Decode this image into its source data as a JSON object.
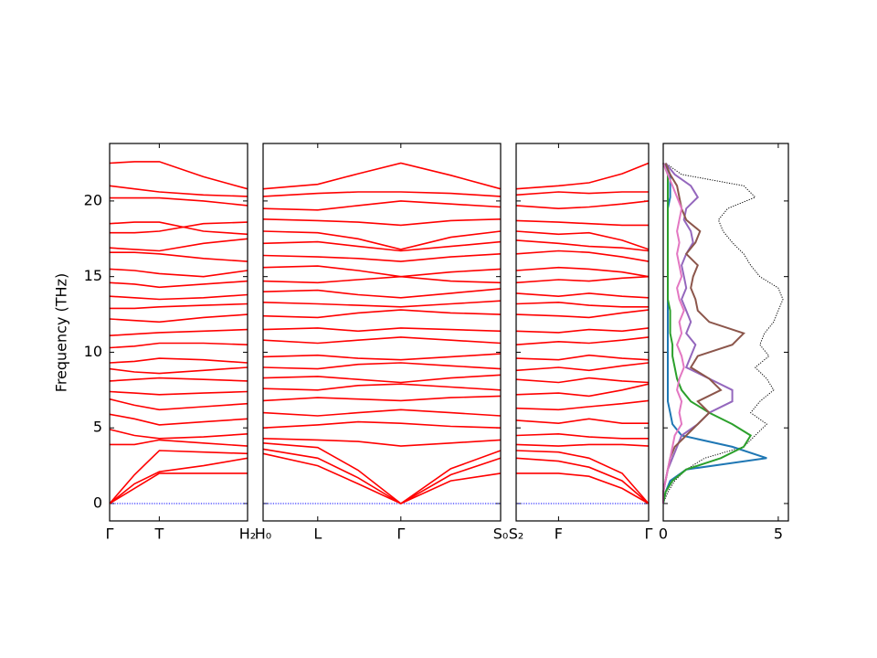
{
  "chart_data": [
    {
      "type": "band",
      "ylabel": "Frequency (THz)",
      "color": "#ff0000",
      "x": [
        0,
        0.18,
        0.36,
        0.68,
        1
      ],
      "xlim": [
        0,
        1
      ],
      "xticks": [
        {
          "value": 0,
          "label": "Γ"
        },
        {
          "value": 0.36,
          "label": "T"
        },
        {
          "value": 1,
          "label": "H₂"
        }
      ],
      "ylim": [
        -1.15,
        23.8
      ],
      "yticks": [
        0,
        5,
        10,
        15,
        20
      ],
      "series": [
        {
          "color": "#0000ff",
          "style": "dotted",
          "values": [
            0,
            0,
            0,
            0,
            0
          ]
        },
        {
          "values": [
            0,
            1.0,
            2.0,
            2.0,
            2.0
          ]
        },
        {
          "values": [
            0,
            1.3,
            2.1,
            2.5,
            3.0
          ]
        },
        {
          "values": [
            0,
            1.9,
            3.5,
            3.4,
            3.3
          ]
        },
        {
          "values": [
            3.9,
            3.9,
            4.2,
            4.0,
            3.8
          ]
        },
        {
          "values": [
            4.9,
            4.5,
            4.3,
            4.4,
            4.6
          ]
        },
        {
          "values": [
            5.9,
            5.6,
            5.2,
            5.4,
            5.6
          ]
        },
        {
          "values": [
            6.9,
            6.5,
            6.2,
            6.4,
            6.6
          ]
        },
        {
          "values": [
            7.4,
            7.3,
            7.2,
            7.3,
            7.4
          ]
        },
        {
          "values": [
            8.1,
            8.2,
            8.3,
            8.2,
            8.1
          ]
        },
        {
          "values": [
            8.9,
            8.7,
            8.6,
            8.8,
            9.0
          ]
        },
        {
          "values": [
            9.3,
            9.4,
            9.6,
            9.5,
            9.3
          ]
        },
        {
          "values": [
            10.3,
            10.4,
            10.6,
            10.6,
            10.5
          ]
        },
        {
          "values": [
            11.1,
            11.2,
            11.3,
            11.4,
            11.5
          ]
        },
        {
          "values": [
            12.2,
            12.1,
            12.0,
            12.3,
            12.5
          ]
        },
        {
          "values": [
            12.9,
            12.9,
            13.0,
            13.1,
            13.2
          ]
        },
        {
          "values": [
            13.7,
            13.6,
            13.5,
            13.6,
            13.8
          ]
        },
        {
          "values": [
            14.6,
            14.5,
            14.3,
            14.5,
            14.7
          ]
        },
        {
          "values": [
            15.5,
            15.4,
            15.2,
            15.0,
            15.4
          ]
        },
        {
          "values": [
            16.6,
            16.6,
            16.5,
            16.2,
            16.0
          ]
        },
        {
          "values": [
            16.9,
            16.8,
            16.7,
            17.2,
            17.5
          ]
        },
        {
          "values": [
            17.9,
            17.9,
            18.0,
            18.5,
            18.6
          ]
        },
        {
          "values": [
            18.5,
            18.6,
            18.6,
            18.0,
            17.8
          ]
        },
        {
          "values": [
            20.2,
            20.2,
            20.2,
            20.0,
            19.7
          ]
        },
        {
          "values": [
            21.0,
            20.8,
            20.6,
            20.4,
            20.3
          ]
        },
        {
          "values": [
            22.5,
            22.6,
            22.6,
            21.6,
            20.8
          ]
        }
      ]
    },
    {
      "type": "band",
      "color": "#ff0000",
      "x": [
        0,
        0.23,
        0.4,
        0.58,
        0.79,
        1
      ],
      "xlim": [
        0,
        1
      ],
      "xticks": [
        {
          "value": 0,
          "label": "H₀"
        },
        {
          "value": 0.23,
          "label": "L"
        },
        {
          "value": 0.58,
          "label": "Γ"
        },
        {
          "value": 1,
          "label": "S₀"
        }
      ],
      "ylim": [
        -1.15,
        23.8
      ],
      "series": [
        {
          "color": "#0000ff",
          "style": "dotted",
          "values": [
            0,
            0,
            0,
            0,
            0,
            0
          ]
        },
        {
          "values": [
            3.3,
            2.5,
            1.3,
            0,
            1.5,
            2.0
          ]
        },
        {
          "values": [
            3.6,
            3.0,
            1.7,
            0,
            1.9,
            3.0
          ]
        },
        {
          "values": [
            4.0,
            3.7,
            2.2,
            0,
            2.3,
            3.5
          ]
        },
        {
          "values": [
            4.3,
            4.2,
            4.1,
            3.8,
            4.0,
            4.2
          ]
        },
        {
          "values": [
            5.0,
            5.2,
            5.4,
            5.3,
            5.1,
            5.0
          ]
        },
        {
          "values": [
            6.0,
            5.8,
            6.0,
            6.2,
            6.0,
            5.8
          ]
        },
        {
          "values": [
            6.8,
            7.0,
            6.9,
            6.8,
            7.0,
            7.1
          ]
        },
        {
          "values": [
            7.6,
            7.5,
            7.8,
            7.9,
            7.7,
            7.5
          ]
        },
        {
          "values": [
            8.3,
            8.4,
            8.2,
            8.0,
            8.3,
            8.5
          ]
        },
        {
          "values": [
            9.0,
            8.9,
            9.2,
            9.3,
            9.1,
            8.9
          ]
        },
        {
          "values": [
            9.7,
            9.8,
            9.6,
            9.5,
            9.7,
            9.9
          ]
        },
        {
          "values": [
            10.8,
            10.6,
            10.8,
            11.0,
            10.8,
            10.6
          ]
        },
        {
          "values": [
            11.5,
            11.6,
            11.4,
            11.6,
            11.5,
            11.4
          ]
        },
        {
          "values": [
            12.4,
            12.3,
            12.6,
            12.8,
            12.6,
            12.5
          ]
        },
        {
          "values": [
            13.3,
            13.2,
            13.1,
            13.0,
            13.2,
            13.4
          ]
        },
        {
          "values": [
            14.0,
            14.1,
            13.8,
            13.6,
            13.9,
            14.2
          ]
        },
        {
          "values": [
            14.7,
            14.6,
            14.8,
            15.0,
            14.7,
            14.6
          ]
        },
        {
          "values": [
            15.6,
            15.7,
            15.4,
            15.0,
            15.3,
            15.5
          ]
        },
        {
          "values": [
            16.4,
            16.3,
            16.2,
            16.0,
            16.3,
            16.5
          ]
        },
        {
          "values": [
            17.2,
            17.3,
            17.0,
            16.7,
            17.0,
            17.3
          ]
        },
        {
          "values": [
            18.0,
            17.9,
            17.5,
            16.8,
            17.6,
            18.0
          ]
        },
        {
          "values": [
            18.8,
            18.7,
            18.6,
            18.4,
            18.7,
            18.8
          ]
        },
        {
          "values": [
            19.5,
            19.4,
            19.7,
            20.0,
            19.8,
            19.6
          ]
        },
        {
          "values": [
            20.3,
            20.5,
            20.6,
            20.6,
            20.5,
            20.3
          ]
        },
        {
          "values": [
            20.8,
            21.1,
            21.8,
            22.5,
            21.7,
            20.8
          ]
        }
      ]
    },
    {
      "type": "band",
      "color": "#ff0000",
      "x": [
        0,
        0.32,
        0.55,
        0.8,
        1
      ],
      "xlim": [
        0,
        1
      ],
      "xticks": [
        {
          "value": 0,
          "label": "S₂"
        },
        {
          "value": 0.32,
          "label": "F"
        },
        {
          "value": 1,
          "label": "Γ"
        }
      ],
      "ylim": [
        -1.15,
        23.8
      ],
      "series": [
        {
          "color": "#0000ff",
          "style": "dotted",
          "values": [
            0,
            0,
            0,
            0,
            0
          ]
        },
        {
          "values": [
            2.0,
            2.0,
            1.8,
            1.0,
            0
          ]
        },
        {
          "values": [
            3.0,
            2.8,
            2.4,
            1.5,
            0
          ]
        },
        {
          "values": [
            3.5,
            3.4,
            3.0,
            2.0,
            0
          ]
        },
        {
          "values": [
            3.9,
            3.8,
            3.9,
            3.9,
            3.8
          ]
        },
        {
          "values": [
            4.5,
            4.6,
            4.4,
            4.3,
            4.3
          ]
        },
        {
          "values": [
            5.5,
            5.3,
            5.6,
            5.3,
            5.3
          ]
        },
        {
          "values": [
            6.3,
            6.2,
            6.4,
            6.6,
            6.8
          ]
        },
        {
          "values": [
            7.2,
            7.3,
            7.1,
            7.5,
            7.9
          ]
        },
        {
          "values": [
            8.2,
            8.0,
            8.3,
            8.1,
            8.0
          ]
        },
        {
          "values": [
            8.8,
            9.0,
            8.8,
            9.1,
            9.3
          ]
        },
        {
          "values": [
            9.6,
            9.5,
            9.8,
            9.6,
            9.5
          ]
        },
        {
          "values": [
            10.5,
            10.7,
            10.6,
            10.8,
            11.0
          ]
        },
        {
          "values": [
            11.4,
            11.3,
            11.5,
            11.4,
            11.6
          ]
        },
        {
          "values": [
            12.5,
            12.4,
            12.3,
            12.6,
            12.8
          ]
        },
        {
          "values": [
            13.2,
            13.3,
            13.1,
            13.0,
            13.0
          ]
        },
        {
          "values": [
            13.9,
            13.7,
            13.9,
            13.7,
            13.6
          ]
        },
        {
          "values": [
            14.6,
            14.8,
            14.7,
            14.9,
            15.0
          ]
        },
        {
          "values": [
            15.4,
            15.6,
            15.5,
            15.3,
            15.0
          ]
        },
        {
          "values": [
            16.5,
            16.7,
            16.6,
            16.3,
            16.0
          ]
        },
        {
          "values": [
            17.4,
            17.2,
            17.0,
            16.9,
            16.7
          ]
        },
        {
          "values": [
            18.0,
            17.8,
            17.9,
            17.4,
            16.8
          ]
        },
        {
          "values": [
            18.7,
            18.6,
            18.5,
            18.4,
            18.4
          ]
        },
        {
          "values": [
            19.7,
            19.5,
            19.6,
            19.8,
            20.0
          ]
        },
        {
          "values": [
            20.4,
            20.6,
            20.5,
            20.6,
            20.6
          ]
        },
        {
          "values": [
            20.8,
            21.0,
            21.2,
            21.8,
            22.5
          ]
        }
      ]
    },
    {
      "type": "dos",
      "xlim": [
        0,
        5.44
      ],
      "xticks": [
        0,
        5
      ],
      "ylim": [
        -1.15,
        23.8
      ],
      "y": [
        0,
        0.75,
        1.5,
        2.25,
        3,
        3.75,
        4.5,
        5.25,
        6,
        6.75,
        7.5,
        8.25,
        9,
        9.75,
        10.5,
        11.25,
        12,
        12.75,
        13.5,
        14.25,
        15,
        15.75,
        16.5,
        17.25,
        18,
        18.75,
        19.5,
        20.25,
        21,
        21.75,
        22.5
      ],
      "series": [
        {
          "color": "#000000",
          "style": "dotted",
          "values": [
            0,
            0.2,
            0.5,
            1.0,
            1.8,
            3.5,
            4.0,
            4.5,
            3.8,
            4.2,
            4.8,
            4.5,
            4.0,
            4.6,
            4.2,
            4.4,
            4.8,
            5.0,
            5.2,
            5.0,
            4.2,
            3.8,
            3.5,
            3.0,
            2.6,
            2.4,
            2.8,
            4.0,
            3.5,
            0.8,
            0.1
          ]
        },
        {
          "color": "#1f77b4",
          "values": [
            0,
            0.1,
            0.3,
            1.0,
            4.5,
            3.0,
            0.8,
            0.4,
            0.3,
            0.2,
            0.2,
            0.2,
            0.2,
            0.2,
            0.2,
            0.2,
            0.2,
            0.2,
            0.2,
            0.2,
            0.2,
            0.2,
            0.2,
            0.2,
            0.2,
            0.2,
            0.2,
            0.3,
            0.3,
            0.3,
            0.0
          ]
        },
        {
          "color": "#2ca02c",
          "values": [
            0,
            0.1,
            0.4,
            1.0,
            2.5,
            3.5,
            3.8,
            3.0,
            2.0,
            1.2,
            0.8,
            0.6,
            0.5,
            0.4,
            0.4,
            0.3,
            0.3,
            0.3,
            0.2,
            0.2,
            0.2,
            0.2,
            0.2,
            0.2,
            0.2,
            0.2,
            0.2,
            0.2,
            0.2,
            0.2,
            0.0
          ]
        },
        {
          "color": "#9467bd",
          "values": [
            0,
            0,
            0.1,
            0.2,
            0.4,
            0.6,
            0.8,
            1.5,
            2.0,
            3.0,
            3.0,
            2.0,
            1.0,
            1.2,
            1.4,
            1.0,
            1.2,
            1.0,
            0.8,
            1.0,
            0.9,
            0.8,
            1.0,
            1.3,
            1.2,
            0.9,
            1.0,
            1.5,
            1.2,
            0.5,
            0.1
          ]
        },
        {
          "color": "#8c564b",
          "values": [
            0,
            0,
            0.1,
            0.2,
            0.3,
            0.5,
            1.0,
            1.5,
            2.0,
            1.5,
            2.5,
            2.0,
            1.2,
            1.5,
            3.0,
            3.5,
            2.0,
            1.5,
            1.4,
            1.2,
            1.3,
            1.5,
            1.0,
            1.4,
            1.6,
            1.0,
            0.8,
            0.7,
            0.6,
            0.3,
            0.1
          ]
        },
        {
          "color": "#e377c2",
          "values": [
            0,
            0,
            0.1,
            0.2,
            0.3,
            0.4,
            0.5,
            0.8,
            0.7,
            0.8,
            0.6,
            0.7,
            0.9,
            0.8,
            0.6,
            0.8,
            0.7,
            0.9,
            0.7,
            0.6,
            0.8,
            0.7,
            0.6,
            0.7,
            0.6,
            0.7,
            0.8,
            0.6,
            0.4,
            0.2,
            0.0
          ]
        }
      ]
    }
  ]
}
